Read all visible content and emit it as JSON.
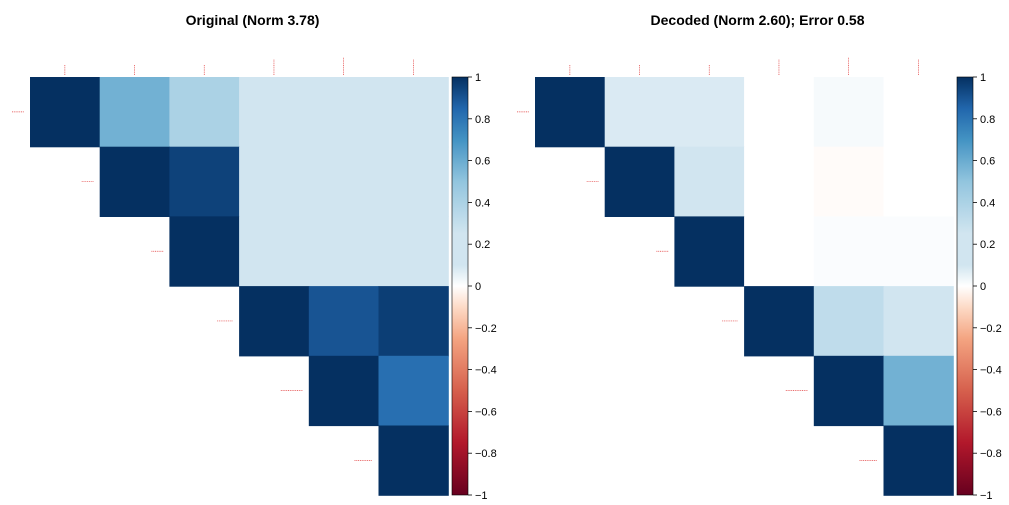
{
  "chart_data": [
    {
      "type": "heatmap",
      "title": "Original (Norm 3.78)",
      "row_labels": [
        "",
        "",
        "",
        "",
        "",
        ""
      ],
      "col_labels": [
        "",
        "",
        "",
        "",
        "",
        ""
      ],
      "matrix": [
        [
          1.0,
          0.58,
          0.4,
          0.18,
          0.16,
          0.16
        ],
        [
          null,
          1.0,
          0.95,
          0.18,
          0.18,
          0.16
        ],
        [
          null,
          null,
          1.0,
          0.2,
          0.15,
          0.18
        ],
        [
          null,
          null,
          null,
          1.0,
          0.9,
          0.96
        ],
        [
          null,
          null,
          null,
          null,
          1.0,
          0.82
        ],
        [
          null,
          null,
          null,
          null,
          null,
          1.0
        ]
      ],
      "colorbar": {
        "min": -1,
        "max": 1,
        "ticks": [
          "1",
          "0.8",
          "0.6",
          "0.4",
          "0.2",
          "0",
          "−0.2",
          "−0.4",
          "−0.6",
          "−0.8",
          "−1"
        ]
      }
    },
    {
      "type": "heatmap",
      "title": "Decoded (Norm 2.60); Error 0.58",
      "row_labels": [
        "",
        "",
        "",
        "",
        "",
        ""
      ],
      "col_labels": [
        "",
        "",
        "",
        "",
        "",
        ""
      ],
      "matrix": [
        [
          1.0,
          0.08,
          0.08,
          0.0,
          0.02,
          0.0
        ],
        [
          null,
          1.0,
          0.15,
          0.0,
          -0.01,
          0.0
        ],
        [
          null,
          null,
          1.0,
          0.0,
          0.01,
          0.01
        ],
        [
          null,
          null,
          null,
          1.0,
          0.32,
          0.14
        ],
        [
          null,
          null,
          null,
          null,
          1.0,
          0.58
        ],
        [
          null,
          null,
          null,
          null,
          null,
          1.0
        ]
      ],
      "colorbar": {
        "min": -1,
        "max": 1,
        "ticks": [
          "1",
          "0.8",
          "0.6",
          "0.4",
          "0.2",
          "0",
          "−0.2",
          "−0.4",
          "−0.6",
          "−0.8",
          "−1"
        ]
      }
    }
  ]
}
